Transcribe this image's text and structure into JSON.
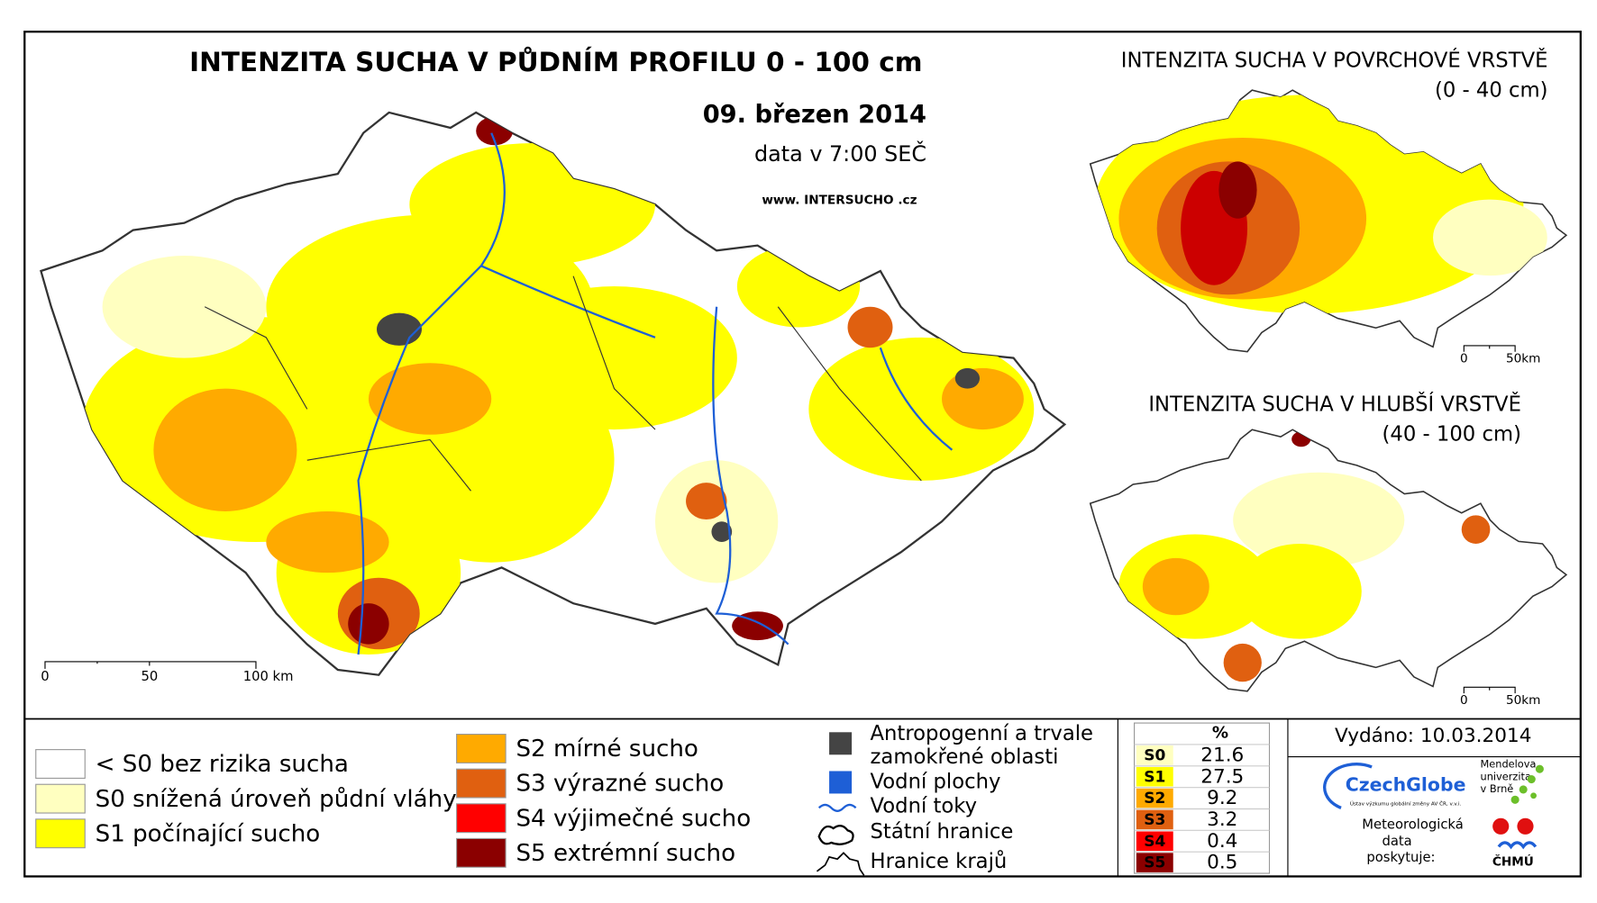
{
  "main_map": {
    "title": "INTENZITA SUCHA V PŮDNÍM PROFILU 0 - 100 cm",
    "date": "09. březen 2014",
    "time_note": "data v 7:00 SEČ",
    "website": "www. INTERSUCHO .cz",
    "scale_labels": [
      "0",
      "50",
      "100 km"
    ]
  },
  "surface_map": {
    "title": "INTENZITA SUCHA V POVRCHOVÉ VRSTVĚ",
    "depth": "(0 - 40 cm)",
    "scale_labels": [
      "0",
      "50km"
    ]
  },
  "deep_map": {
    "title": "INTENZITA SUCHA V HLUBŠÍ VRSTVĚ",
    "depth": "(40 - 100 cm)",
    "scale_labels": [
      "0",
      "50km"
    ]
  },
  "legend": {
    "classes": [
      {
        "label": "< S0 bez rizika sucha",
        "color": "#ffffff"
      },
      {
        "label": "S0 snížená úroveň půdní vláhy",
        "color": "#ffffc0"
      },
      {
        "label": "S1 počínající sucho",
        "color": "#ffff00"
      },
      {
        "label": "S2 mírné sucho",
        "color": "#ffaa00"
      },
      {
        "label": "S3 výrazné sucho",
        "color": "#e06010"
      },
      {
        "label": "S4 výjimečné sucho",
        "color": "#ff0000"
      },
      {
        "label": "S5 extrémní sucho",
        "color": "#8b0000"
      }
    ],
    "symbols": [
      "Antropogenní a trvale",
      "zamokřené oblasti",
      "Vodní plochy",
      "Vodní toky",
      "Státní hranice",
      "Hranice krajů"
    ]
  },
  "stats_table": {
    "header": "%",
    "rows": [
      {
        "class": "S0",
        "color": "#ffffc0",
        "percent": 21.6
      },
      {
        "class": "S1",
        "color": "#ffff00",
        "percent": 27.5
      },
      {
        "class": "S2",
        "color": "#ffaa00",
        "percent": 9.2
      },
      {
        "class": "S3",
        "color": "#e06010",
        "percent": 3.2
      },
      {
        "class": "S4",
        "color": "#ff0000",
        "percent": 0.4
      },
      {
        "class": "S5",
        "color": "#8b0000",
        "percent": 0.5
      }
    ]
  },
  "issued": "Vydáno: 10.03.2014",
  "credits": {
    "czechglobe": "CzechGlobe",
    "czechglobe_sub": "Ústav výzkumu globální změny AV ČR, v.v.i.",
    "mendel": [
      "Mendelova",
      "univerzita",
      "v Brně"
    ],
    "provider": [
      "Meteorologická",
      "data",
      "poskytuje:"
    ],
    "chmu": "ČHMÚ"
  }
}
